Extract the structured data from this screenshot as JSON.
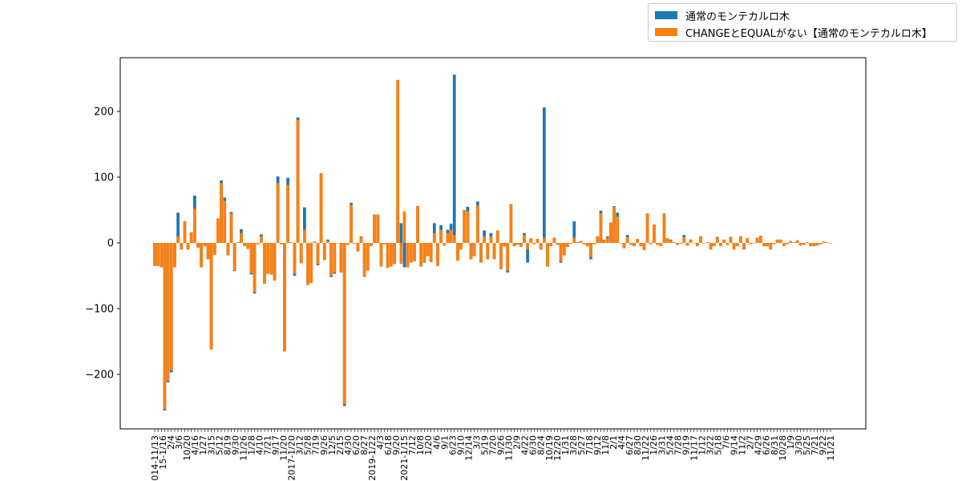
{
  "chart_data": {
    "type": "bar",
    "title": "",
    "xlabel": "",
    "ylabel": "",
    "ylim": [
      -280,
      285
    ],
    "yticks": [
      200,
      100,
      0,
      -100,
      -200
    ],
    "ytick_labels": [
      "200",
      "100",
      "0",
      "−100",
      "−200"
    ],
    "grid": false,
    "legend_position": "upper-right-outside",
    "xtick_labels": [
      "2014-11/13",
      "15-1/16",
      "2/4",
      "3/6",
      "10/20",
      "4/16",
      "1/27",
      "3/15",
      "5/12",
      "8/19",
      "9/30",
      "11/26",
      "1/28",
      "4/10",
      "7/21",
      "9/17",
      "11/20",
      "2017-1/20",
      "3/12",
      "5/28",
      "7/19",
      "9/26",
      "12/5",
      "2/15",
      "4/30",
      "6/20",
      "8/27",
      "2019-1/22",
      "4/3",
      "6/18",
      "9/20",
      "2021-1/15",
      "7/12",
      "10/8",
      "1/20",
      "4/6",
      "9/1",
      "6/23",
      "9/10",
      "12/14",
      "3/3",
      "5/19",
      "7/20",
      "9/26",
      "11/30",
      "2/9",
      "4/22",
      "6/30",
      "8/24",
      "10/19",
      "12/20",
      "1/31",
      "3/28",
      "5/27",
      "7/18",
      "9/12",
      "11/8",
      "2/1",
      "4/4",
      "6/27",
      "8/30",
      "11/22",
      "1/26",
      "3/31",
      "5/24",
      "7/28",
      "9/19",
      "11/17",
      "1/12",
      "3/22",
      "5/18",
      "7/6",
      "9/14",
      "11/2",
      "2/7",
      "4/29",
      "6/26",
      "8/31",
      "10/28",
      "1/9",
      "3/30",
      "5/25",
      "7/21",
      "9/22",
      "11/21"
    ],
    "series": [
      {
        "name": "通常のモンテカルロ木",
        "color": "#1f77b4",
        "values": [
          -35,
          -35,
          -37,
          -255,
          -212,
          -197,
          -37,
          46,
          -10,
          33,
          -10,
          16,
          72,
          -7,
          -37,
          -5,
          -25,
          -162,
          -18,
          37,
          95,
          69,
          -19,
          47,
          -43,
          1,
          21,
          -5,
          -9,
          -48,
          -77,
          -2,
          13,
          -62,
          -47,
          -48,
          -57,
          101,
          -2,
          -165,
          99,
          1,
          -50,
          191,
          -31,
          54,
          -64,
          -61,
          2,
          -34,
          106,
          -26,
          5,
          -52,
          -47,
          0,
          -45,
          -248,
          -3,
          61,
          -1,
          -13,
          10,
          -50,
          -42,
          -5,
          43,
          43,
          -36,
          -2,
          -38,
          -34,
          -32,
          51,
          30,
          -37,
          -37,
          -30,
          -28,
          56,
          -36,
          -30,
          -20,
          -29,
          30,
          -35,
          27,
          -4,
          20,
          29,
          256,
          -27,
          -10,
          50,
          55,
          -25,
          -20,
          63,
          -30,
          19,
          -25,
          15,
          -25,
          19,
          -40,
          -5,
          -45,
          59,
          -5,
          -3,
          -6,
          15,
          -30,
          7,
          -2,
          6,
          -10,
          206,
          -36,
          -5,
          8,
          -3,
          -30,
          -19,
          -6,
          -1,
          33,
          1,
          3,
          -2,
          -5,
          -25,
          -2,
          10,
          49,
          5,
          10,
          31,
          56,
          46,
          0,
          -8,
          12,
          -3,
          -5,
          6,
          -5,
          -11,
          45,
          -2,
          28,
          -3,
          -5,
          45,
          7,
          5,
          1,
          -3,
          -1,
          12,
          -4,
          5,
          0,
          -5,
          10,
          0,
          1,
          -10,
          -5,
          9,
          -5,
          5,
          -3,
          9,
          -10,
          -5,
          10,
          -10,
          7,
          -2,
          0,
          8,
          11,
          -5,
          -5,
          -10,
          -2,
          5,
          5,
          -5,
          -2,
          3,
          1,
          4,
          -4,
          -3,
          1,
          -5,
          -5,
          -4,
          -2,
          2,
          1,
          0
        ],
        "stacked_under": true
      },
      {
        "name": "CHANGEとEQUALがない【通常のモンテカルロ木】",
        "color": "#ff7f0e",
        "values": [
          -35,
          -35,
          -37,
          -253,
          -210,
          -194,
          -37,
          10,
          -10,
          33,
          -10,
          16,
          52,
          -7,
          -37,
          -5,
          -25,
          -162,
          -18,
          37,
          91,
          64,
          -19,
          45,
          -42,
          1,
          15,
          -5,
          -9,
          -46,
          -75,
          -2,
          10,
          -62,
          -47,
          -48,
          -57,
          91,
          -2,
          -165,
          88,
          1,
          -47,
          187,
          -31,
          20,
          -64,
          -61,
          2,
          -32,
          106,
          -26,
          3,
          -50,
          -45,
          0,
          -45,
          -245,
          -3,
          58,
          -1,
          -13,
          10,
          -52,
          -42,
          -5,
          43,
          43,
          -36,
          -2,
          -38,
          -36,
          -32,
          248,
          -32,
          48,
          -37,
          -30,
          -28,
          56,
          -36,
          -30,
          -20,
          -29,
          15,
          -35,
          20,
          -4,
          15,
          20,
          12,
          -27,
          -10,
          50,
          48,
          -25,
          -20,
          57,
          -30,
          10,
          -25,
          10,
          -25,
          19,
          -40,
          -5,
          -42,
          59,
          -5,
          -3,
          -6,
          12,
          -10,
          7,
          -2,
          6,
          -10,
          8,
          -36,
          -5,
          8,
          -3,
          -28,
          -19,
          -6,
          -1,
          8,
          1,
          3,
          -2,
          -5,
          -22,
          -2,
          10,
          45,
          5,
          8,
          31,
          55,
          40,
          0,
          -8,
          9,
          -3,
          -5,
          6,
          -5,
          -11,
          45,
          -2,
          28,
          -3,
          -5,
          45,
          7,
          4,
          1,
          -3,
          -1,
          9,
          -4,
          5,
          0,
          -5,
          10,
          0,
          1,
          -10,
          -5,
          8,
          -5,
          5,
          -3,
          9,
          -10,
          -5,
          10,
          -10,
          7,
          -2,
          0,
          8,
          11,
          -5,
          -5,
          -10,
          -2,
          5,
          5,
          -5,
          -2,
          3,
          1,
          4,
          -4,
          -3,
          1,
          -5,
          -5,
          -4,
          -2,
          2,
          1,
          0
        ]
      }
    ]
  }
}
